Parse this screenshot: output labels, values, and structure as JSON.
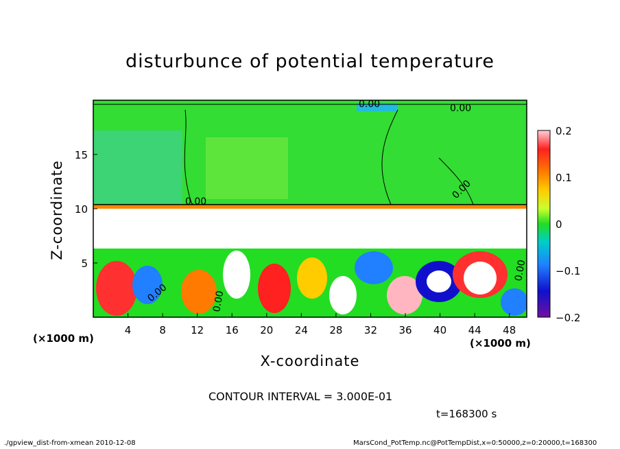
{
  "chart_data": {
    "type": "heatmap",
    "title": "disturbunce of potential temperature",
    "xlabel": "X-coordinate",
    "ylabel": "Z-coordinate",
    "x_unit": "(×1000 m)",
    "x_ticks": [
      4,
      8,
      12,
      16,
      20,
      24,
      28,
      32,
      36,
      40,
      44,
      48
    ],
    "y_ticks": [
      5,
      10,
      15
    ],
    "xlim": [
      0,
      50
    ],
    "ylim": [
      0,
      20
    ],
    "colorbar": {
      "ticks": [
        "0.2",
        "0.1",
        "0",
        "−0.1",
        "−0.2"
      ],
      "range": [
        -0.2,
        0.2
      ],
      "colors": [
        "#ffb6c1",
        "#ff2020",
        "#ff7a00",
        "#ffcc00",
        "#c8ff2e",
        "#22dd22",
        "#00cccc",
        "#2080ff",
        "#1010cc",
        "#7010a0"
      ]
    },
    "contour_labels": [
      "0.00",
      "0.00",
      "0.00",
      "0.00",
      "0.00",
      "0.00",
      "0.00"
    ],
    "contour_interval": "CONTOUR INTERVAL = 3.000E-01",
    "time": "t=168300 s",
    "footer_left": "./gpview_dist-from-xmean  2010-12-08",
    "footer_right": "MarsCond_PotTemp.nc@PotTempDist,x=0:50000,z=0:20000,t=168300"
  }
}
